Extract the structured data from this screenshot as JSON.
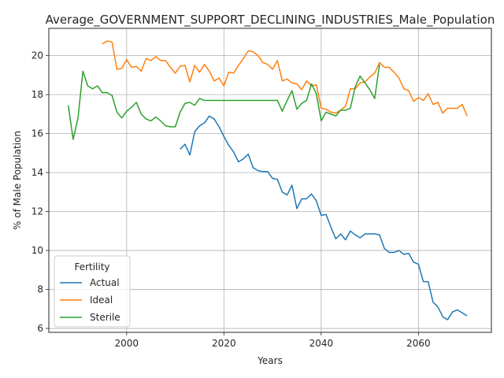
{
  "chart_data": {
    "type": "line",
    "title": "Average_GOVERNMENT_SUPPORT_DECLINING_INDUSTRIES_Male_Population",
    "xlabel": "Years",
    "ylabel": "% of Male Population",
    "xlim": [
      1984,
      2075
    ],
    "ylim": [
      5.8,
      21.4
    ],
    "xticks": [
      2000,
      2020,
      2040,
      2060
    ],
    "yticks": [
      6,
      8,
      10,
      12,
      14,
      16,
      18,
      20
    ],
    "grid": true,
    "legend": {
      "title": "Fertility",
      "position": "lower-left"
    },
    "series": [
      {
        "name": "Actual",
        "color": "#1f77b4",
        "x": [
          2011,
          2012,
          2013,
          2014,
          2015,
          2016,
          2017,
          2018,
          2019,
          2020,
          2021,
          2022,
          2023,
          2024,
          2025,
          2026,
          2027,
          2028,
          2029,
          2030,
          2031,
          2032,
          2033,
          2034,
          2035,
          2036,
          2037,
          2038,
          2039,
          2040,
          2041,
          2042,
          2043,
          2044,
          2045,
          2046,
          2047,
          2048,
          2049,
          2050,
          2051,
          2052,
          2053,
          2054,
          2055,
          2056,
          2057,
          2058,
          2059,
          2060,
          2061,
          2062,
          2063,
          2064,
          2065,
          2066,
          2067,
          2068,
          2069,
          2070
        ],
        "values": [
          15.2,
          15.45,
          14.9,
          16.1,
          16.4,
          16.55,
          16.9,
          16.75,
          16.35,
          15.85,
          15.4,
          15.05,
          14.55,
          14.7,
          14.95,
          14.25,
          14.1,
          14.05,
          14.05,
          13.7,
          13.65,
          13.0,
          12.85,
          13.35,
          12.15,
          12.65,
          12.65,
          12.9,
          12.55,
          11.8,
          11.85,
          11.2,
          10.6,
          10.85,
          10.55,
          11.0,
          10.8,
          10.65,
          10.85,
          10.85,
          10.85,
          10.8,
          10.1,
          9.9,
          9.9,
          10.0,
          9.8,
          9.85,
          9.4,
          9.3,
          8.4,
          8.4,
          7.35,
          7.1,
          6.6,
          6.45,
          6.85,
          6.95,
          6.8,
          6.65
        ]
      },
      {
        "name": "Ideal",
        "color": "#ff7f0e",
        "x": [
          1995,
          1996,
          1997,
          1998,
          1999,
          2000,
          2001,
          2002,
          2003,
          2004,
          2005,
          2006,
          2007,
          2008,
          2009,
          2010,
          2011,
          2012,
          2013,
          2014,
          2015,
          2016,
          2017,
          2018,
          2019,
          2020,
          2021,
          2022,
          2023,
          2024,
          2025,
          2026,
          2027,
          2028,
          2029,
          2030,
          2031,
          2032,
          2033,
          2034,
          2035,
          2036,
          2037,
          2038,
          2039,
          2040,
          2041,
          2042,
          2043,
          2044,
          2045,
          2046,
          2047,
          2048,
          2049,
          2050,
          2051,
          2052,
          2053,
          2054,
          2055,
          2056,
          2057,
          2058,
          2059,
          2060,
          2061,
          2062,
          2063,
          2064,
          2065,
          2066,
          2067,
          2068,
          2069,
          2070
        ],
        "values": [
          20.6,
          20.75,
          20.7,
          19.3,
          19.35,
          19.8,
          19.4,
          19.45,
          19.2,
          19.85,
          19.75,
          19.95,
          19.75,
          19.75,
          19.4,
          19.1,
          19.45,
          19.5,
          18.65,
          19.5,
          19.15,
          19.55,
          19.2,
          18.7,
          18.85,
          18.45,
          19.15,
          19.1,
          19.5,
          19.85,
          20.25,
          20.2,
          20.0,
          19.65,
          19.55,
          19.3,
          19.75,
          18.7,
          18.8,
          18.6,
          18.55,
          18.25,
          18.7,
          18.45,
          18.5,
          17.3,
          17.25,
          17.1,
          17.05,
          17.2,
          17.4,
          18.3,
          18.3,
          18.6,
          18.65,
          18.9,
          19.1,
          19.65,
          19.4,
          19.4,
          19.15,
          18.85,
          18.3,
          18.2,
          17.65,
          17.85,
          17.7,
          18.05,
          17.5,
          17.6,
          17.05,
          17.3,
          17.3,
          17.3,
          17.5,
          16.9
        ]
      },
      {
        "name": "Sterile",
        "color": "#2ca02c",
        "x": [
          1988,
          1989,
          1990,
          1991,
          1992,
          1993,
          1994,
          1995,
          1996,
          1997,
          1998,
          1999,
          2000,
          2001,
          2002,
          2003,
          2004,
          2005,
          2006,
          2007,
          2008,
          2009,
          2010,
          2011,
          2012,
          2013,
          2014,
          2015,
          2016,
          2017,
          2018,
          2019,
          2020,
          2021,
          2022,
          2023,
          2024,
          2025,
          2026,
          2027,
          2028,
          2029,
          2030,
          2031,
          2032,
          2033,
          2034,
          2035,
          2036,
          2037,
          2038,
          2039,
          2040,
          2041,
          2042,
          2043,
          2044,
          2045,
          2046,
          2047,
          2048,
          2049,
          2050,
          2051,
          2052
        ],
        "values": [
          17.45,
          15.7,
          16.8,
          19.2,
          18.45,
          18.3,
          18.45,
          18.1,
          18.1,
          17.95,
          17.1,
          16.8,
          17.15,
          17.35,
          17.6,
          17.0,
          16.75,
          16.65,
          16.85,
          16.65,
          16.4,
          16.35,
          16.35,
          17.1,
          17.55,
          17.6,
          17.45,
          17.8,
          17.7,
          17.7,
          17.7,
          17.7,
          17.7,
          17.7,
          17.7,
          17.7,
          17.7,
          17.7,
          17.7,
          17.7,
          17.7,
          17.7,
          17.7,
          17.7,
          17.15,
          17.7,
          18.2,
          17.25,
          17.55,
          17.7,
          18.55,
          18.05,
          16.65,
          17.1,
          17.0,
          16.9,
          17.2,
          17.2,
          17.3,
          18.4,
          18.95,
          18.6,
          18.25,
          17.8,
          19.55
        ]
      }
    ]
  }
}
